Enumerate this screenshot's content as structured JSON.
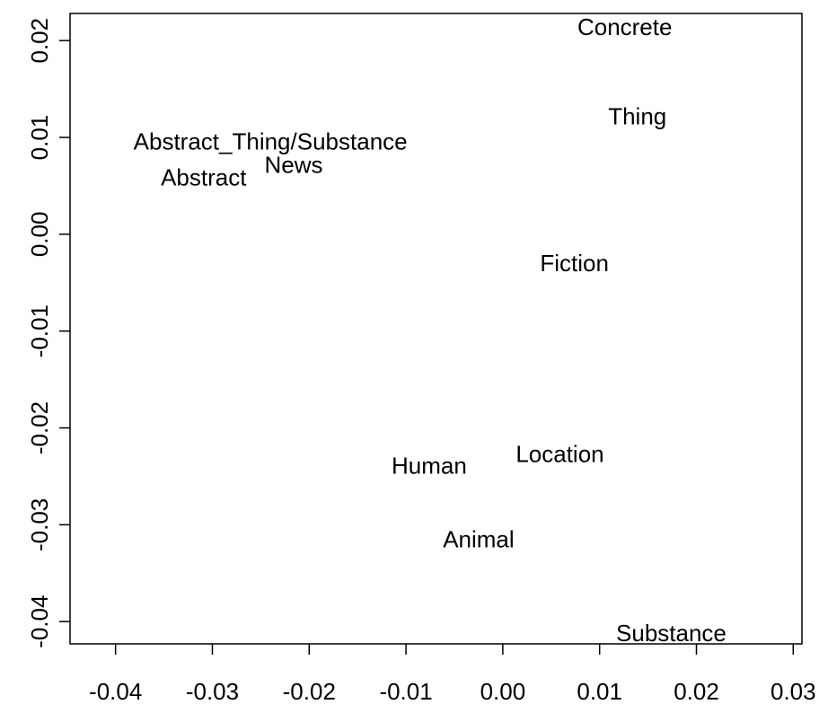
{
  "chart_data": {
    "type": "scatter",
    "labels": [
      "Concrete",
      "Thing",
      "Abstract_Thing/Substance",
      "News",
      "Abstract",
      "Fiction",
      "Location",
      "Human",
      "Animal",
      "Substance"
    ],
    "x": [
      0.0126,
      0.0139,
      -0.024,
      -0.0216,
      -0.0309,
      0.0074,
      0.0059,
      -0.0076,
      -0.0025,
      0.0174
    ],
    "y": [
      0.0212,
      0.012,
      0.0094,
      0.007,
      0.0057,
      -0.0032,
      -0.0229,
      -0.0241,
      -0.0317,
      -0.0414
    ],
    "color": "#000000",
    "xlim": [
      -0.0447,
      0.0309
    ],
    "ylim": [
      -0.0423,
      0.0228
    ],
    "xticks": [
      -0.04,
      -0.03,
      -0.02,
      -0.01,
      {
        "value": 0,
        "label": "0.00"
      },
      0.01,
      0.02,
      0.03
    ],
    "yticks": [
      -0.04,
      -0.03,
      -0.02,
      -0.01,
      {
        "value": 0,
        "label": "0.00"
      },
      0.01,
      0.02
    ],
    "grid": false
  }
}
